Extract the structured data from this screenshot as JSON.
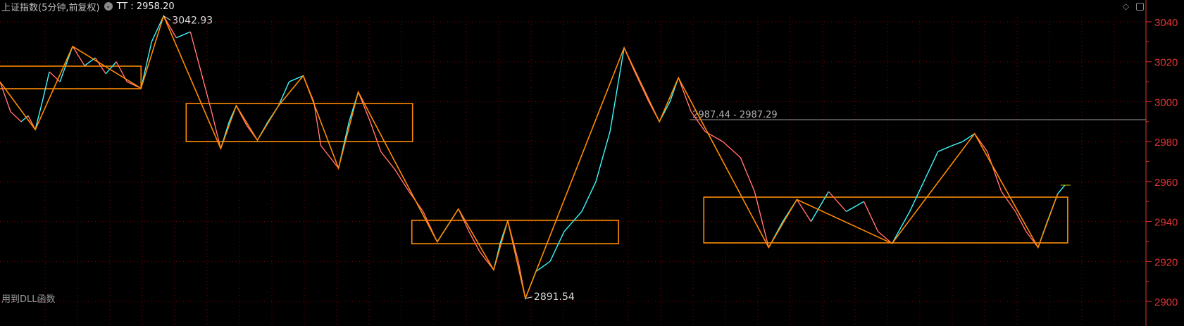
{
  "header": {
    "title": "上证指数(5分钟,前复权)",
    "indicator_icon": "chevron-down-circle-icon",
    "indicator": "TT",
    "indicator_value": "TT : 2958.20"
  },
  "footer": {
    "text": "用到DLL函数"
  },
  "toolbar_icons": [
    "diamond-icon",
    "panel-toggle-icon"
  ],
  "colors": {
    "background": "#000000",
    "grid": "#8b0000",
    "axis_text": "#e03333",
    "up": "#00e5ee",
    "down": "#ff4040",
    "zigzag": "#ff8c00",
    "box": "#ff8c00",
    "ref_line": "#9a9a9a"
  },
  "chart_data": {
    "type": "line",
    "title": "上证指数(5分钟,前复权)",
    "ylim": [
      2890,
      3043
    ],
    "yticks": [
      2900,
      2920,
      2940,
      2960,
      2980,
      3000,
      3020,
      3040
    ],
    "ytick_labels": [
      "2900",
      "2920",
      "2940",
      "2960",
      "2980",
      "3000",
      "3020",
      "3040"
    ],
    "grid": true,
    "xlim": [
      0,
      325
    ],
    "price": [
      [
        0,
        3010
      ],
      [
        3,
        2995
      ],
      [
        6,
        2990
      ],
      [
        8,
        2993
      ],
      [
        10,
        2986
      ],
      [
        12,
        3000
      ],
      [
        14,
        3015
      ],
      [
        17,
        3010
      ],
      [
        20.6,
        3027.7
      ],
      [
        24,
        3018
      ],
      [
        27,
        3022
      ],
      [
        30,
        3014
      ],
      [
        33,
        3020
      ],
      [
        36,
        3010
      ],
      [
        40,
        3006.7
      ],
      [
        43,
        3030
      ],
      [
        46.4,
        3042.93
      ],
      [
        50,
        3032
      ],
      [
        54,
        3035
      ],
      [
        57,
        3015
      ],
      [
        60,
        2995
      ],
      [
        62.6,
        2976.5
      ],
      [
        65,
        2990
      ],
      [
        67,
        2998
      ],
      [
        70,
        2988
      ],
      [
        73,
        2980.7
      ],
      [
        76,
        2990
      ],
      [
        79,
        2998
      ],
      [
        82,
        3010
      ],
      [
        86,
        3013
      ],
      [
        89,
        3000
      ],
      [
        91,
        2978
      ],
      [
        96,
        2966.7
      ],
      [
        99,
        2990
      ],
      [
        101.6,
        3004.9
      ],
      [
        105,
        2990
      ],
      [
        108,
        2975
      ],
      [
        112,
        2966
      ],
      [
        116,
        2955
      ],
      [
        120,
        2945
      ],
      [
        124,
        2929.8
      ],
      [
        127,
        2938
      ],
      [
        130,
        2946.3
      ],
      [
        133,
        2935
      ],
      [
        136,
        2925
      ],
      [
        140,
        2915.8
      ],
      [
        142,
        2930
      ],
      [
        144,
        2940.4
      ],
      [
        147,
        2920
      ],
      [
        149,
        2901.5
      ],
      [
        152,
        2915
      ],
      [
        156,
        2920
      ],
      [
        160,
        2935
      ],
      [
        165,
        2945
      ],
      [
        169,
        2960
      ],
      [
        173,
        2985
      ],
      [
        177,
        3027
      ],
      [
        180,
        3015
      ],
      [
        184,
        3000
      ],
      [
        187,
        2990
      ],
      [
        190,
        3000
      ],
      [
        192.4,
        3012
      ],
      [
        196,
        2995
      ],
      [
        200,
        2985
      ],
      [
        205,
        2980
      ],
      [
        210,
        2972
      ],
      [
        214,
        2955
      ],
      [
        218,
        2927
      ],
      [
        222,
        2940
      ],
      [
        226,
        2951
      ],
      [
        230,
        2940
      ],
      [
        235,
        2955
      ],
      [
        240,
        2945
      ],
      [
        245,
        2950
      ],
      [
        249,
        2935
      ],
      [
        253,
        2929
      ],
      [
        258,
        2945
      ],
      [
        262,
        2960
      ],
      [
        266,
        2975
      ],
      [
        270,
        2978
      ],
      [
        273,
        2980
      ],
      [
        276.4,
        2984
      ],
      [
        280,
        2975
      ],
      [
        284,
        2955
      ],
      [
        288,
        2945
      ],
      [
        291,
        2935
      ],
      [
        294.4,
        2927
      ],
      [
        297,
        2940
      ],
      [
        300,
        2954
      ],
      [
        302,
        2958.2
      ]
    ],
    "zigzag": [
      [
        0,
        3010
      ],
      [
        10,
        2986
      ],
      [
        20.6,
        3027.7
      ],
      [
        40,
        3006.7
      ],
      [
        46.4,
        3042.93
      ],
      [
        62.6,
        2976.5
      ],
      [
        67,
        2998
      ],
      [
        73,
        2980.7
      ],
      [
        79,
        2998
      ],
      [
        86,
        3013
      ],
      [
        96,
        2966.7
      ],
      [
        101.6,
        3004.9
      ],
      [
        124,
        2929.8
      ],
      [
        130,
        2946.3
      ],
      [
        140,
        2915.8
      ],
      [
        144,
        2940.4
      ],
      [
        149,
        2901.5
      ],
      [
        177,
        3027
      ],
      [
        187,
        2990
      ],
      [
        192.4,
        3012
      ],
      [
        218,
        2927
      ],
      [
        226,
        2951
      ],
      [
        253,
        2929
      ],
      [
        276.4,
        2984
      ],
      [
        294.4,
        2927
      ],
      [
        300,
        2954
      ]
    ],
    "boxes": [
      {
        "x": [
          -5,
          40
        ],
        "y": [
          3006.5,
          3017.8
        ]
      },
      {
        "x": [
          52.8,
          117
        ],
        "y": [
          2980,
          2999.1
        ]
      },
      {
        "x": [
          116.8,
          175.4
        ],
        "y": [
          2928.9,
          2940.6
        ]
      },
      {
        "x": [
          199.6,
          302.8
        ],
        "y": [
          2929.3,
          2952.2
        ]
      }
    ],
    "ref_line": {
      "value": 2991,
      "from_x": 195.6,
      "label": "2987.44 - 2987.29"
    },
    "annotations": [
      {
        "x": 46.4,
        "y": 3042.93,
        "text": "3042.93"
      },
      {
        "x": 149,
        "y": 2901.5,
        "text": "2891.54"
      }
    ],
    "last_value": 2958.2
  }
}
